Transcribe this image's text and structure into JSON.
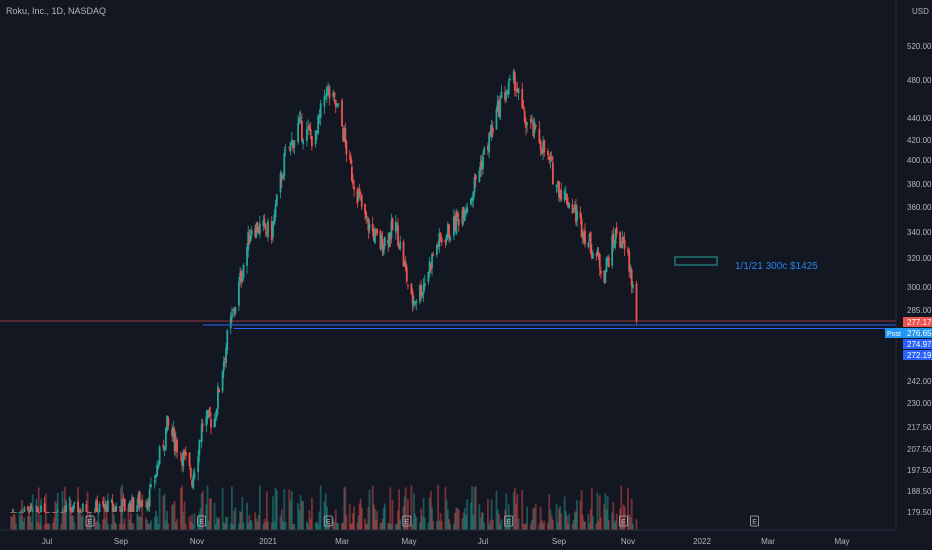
{
  "header": {
    "title": "Roku, Inc., 1D, NASDAQ"
  },
  "currency": {
    "label": "USD"
  },
  "colors": {
    "background": "#131722",
    "up": "#26a69a",
    "down": "#ef5350",
    "level_line": "#2962ff",
    "price_line": "#ef5350",
    "annotation_text": "#2f80ed",
    "grid": "#1e222d",
    "axis_text": "#b2b5be"
  },
  "annotation": {
    "text": "1/1/21 300c $1425"
  },
  "badges": {
    "last_price": "277.17",
    "post_label": "Post",
    "post_price": "276.65",
    "level_1": "274.97",
    "level_2": "272.19"
  },
  "chart_data": {
    "type": "candlestick",
    "title": "Roku, Inc., 1D, NASDAQ",
    "xlabel": "",
    "ylabel": "",
    "y_scale": "log",
    "y_tick_labels": [
      "520.00",
      "480.00",
      "440.00",
      "420.00",
      "400.00",
      "380.00",
      "360.00",
      "340.00",
      "320.00",
      "300.00",
      "285.00",
      "277.17",
      "276.65",
      "274.97",
      "272.19",
      "242.00",
      "230.00",
      "217.50",
      "207.50",
      "197.50",
      "188.50",
      "179.50"
    ],
    "x_tick_labels": [
      "Jul",
      "Sep",
      "Nov",
      "2021",
      "Mar",
      "May",
      "Jul",
      "Sep",
      "Nov",
      "2022",
      "Mar",
      "May"
    ],
    "close_path": [
      [
        "2020-06-01",
        178
      ],
      [
        "2020-07-01",
        178
      ],
      [
        "2020-07-20",
        179
      ],
      [
        "2020-08-10",
        180
      ],
      [
        "2020-08-25",
        181
      ],
      [
        "2020-09-10",
        182
      ],
      [
        "2020-09-25",
        187
      ],
      [
        "2020-10-08",
        218
      ],
      [
        "2020-10-20",
        205
      ],
      [
        "2020-10-28",
        194
      ],
      [
        "2020-11-06",
        220
      ],
      [
        "2020-11-16",
        222
      ],
      [
        "2020-11-24",
        255
      ],
      [
        "2020-12-07",
        300
      ],
      [
        "2020-12-18",
        345
      ],
      [
        "2021-01-04",
        340
      ],
      [
        "2021-01-14",
        400
      ],
      [
        "2021-01-25",
        432
      ],
      [
        "2021-02-08",
        420
      ],
      [
        "2021-02-16",
        470
      ],
      [
        "2021-02-26",
        448
      ],
      [
        "2021-03-08",
        395
      ],
      [
        "2021-03-22",
        350
      ],
      [
        "2021-04-05",
        330
      ],
      [
        "2021-04-19",
        345
      ],
      [
        "2021-05-03",
        290
      ],
      [
        "2021-05-12",
        300
      ],
      [
        "2021-05-24",
        330
      ],
      [
        "2021-06-07",
        345
      ],
      [
        "2021-06-21",
        370
      ],
      [
        "2021-07-06",
        420
      ],
      [
        "2021-07-16",
        460
      ],
      [
        "2021-07-27",
        480
      ],
      [
        "2021-08-03",
        440
      ],
      [
        "2021-08-16",
        420
      ],
      [
        "2021-08-30",
        380
      ],
      [
        "2021-09-13",
        360
      ],
      [
        "2021-09-27",
        333
      ],
      [
        "2021-10-11",
        310
      ],
      [
        "2021-10-22",
        340
      ],
      [
        "2021-11-01",
        320
      ],
      [
        "2021-11-05",
        300
      ],
      [
        "2021-11-08",
        277.17
      ]
    ],
    "levels": [
      {
        "price": 277.17,
        "kind": "last_price"
      },
      {
        "price": 274.97,
        "kind": "horizontal_line"
      },
      {
        "price": 272.19,
        "kind": "horizontal_line"
      }
    ],
    "ylim": [
      179.5,
      530
    ],
    "grid": false,
    "volume_pane": true,
    "earnings_markers": [
      "2020-08-06",
      "2020-11-05",
      "2021-02-18",
      "2021-04-29",
      "2021-07-22",
      "2021-10-28",
      "2022-02-17"
    ]
  }
}
